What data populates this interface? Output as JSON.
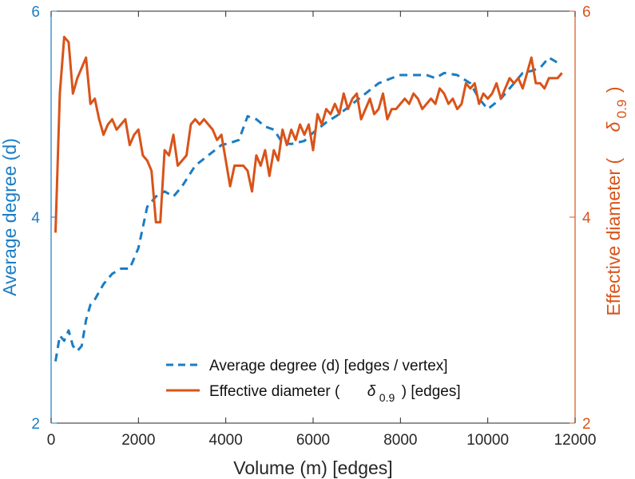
{
  "chart_data": {
    "type": "line",
    "xlabel": "Volume (m) [edges]",
    "xlim": [
      0,
      12000
    ],
    "x_ticks": [
      "0",
      "2000",
      "4000",
      "6000",
      "8000",
      "10000",
      "12000"
    ],
    "left_axis": {
      "label": "Average degree (d)",
      "ylim": [
        2,
        6
      ],
      "ticks": [
        "2",
        "4",
        "6"
      ],
      "color": "#1a7cc4"
    },
    "right_axis": {
      "label_prefix": "Effective diameter (",
      "label_symbol": "δ",
      "label_subscript": "0.9",
      "label_suffix": ")",
      "ylim": [
        2,
        6
      ],
      "ticks": [
        "2",
        "4",
        "6"
      ],
      "color": "#d95319"
    },
    "legend": {
      "position": "lower-right",
      "entries": [
        {
          "text": "Average degree (d) [edges / vertex]"
        },
        {
          "prefix": "Effective diameter (",
          "symbol": "δ",
          "subscript": "0.9",
          "suffix": ") [edges]"
        }
      ]
    },
    "series": [
      {
        "name": "Average degree (d) [edges / vertex]",
        "axis": "left",
        "style": "dashed",
        "color": "#1a7cc4",
        "x": [
          100,
          200,
          300,
          400,
          500,
          600,
          700,
          800,
          900,
          1000,
          1200,
          1400,
          1600,
          1800,
          2000,
          2200,
          2400,
          2600,
          2800,
          3000,
          3300,
          3600,
          3900,
          4100,
          4300,
          4500,
          4700,
          4900,
          5100,
          5300,
          5500,
          5800,
          6000,
          6300,
          6600,
          6900,
          7200,
          7500,
          7800,
          8000,
          8300,
          8600,
          8800,
          9000,
          9300,
          9600,
          9800,
          10000,
          10300,
          10600,
          10800,
          11000,
          11200,
          11400,
          11600
        ],
        "values": [
          2.6,
          2.85,
          2.8,
          2.9,
          2.75,
          2.7,
          2.75,
          3.0,
          3.15,
          3.2,
          3.35,
          3.45,
          3.5,
          3.5,
          3.7,
          4.1,
          4.2,
          4.25,
          4.2,
          4.3,
          4.5,
          4.6,
          4.7,
          4.72,
          4.75,
          4.98,
          4.95,
          4.88,
          4.85,
          4.72,
          4.71,
          4.74,
          4.82,
          4.92,
          5.0,
          5.1,
          5.2,
          5.3,
          5.35,
          5.38,
          5.38,
          5.38,
          5.35,
          5.4,
          5.38,
          5.3,
          5.15,
          5.05,
          5.15,
          5.3,
          5.4,
          5.42,
          5.45,
          5.55,
          5.5
        ]
      },
      {
        "name": "Effective diameter (δ0.9) [edges]",
        "axis": "right",
        "style": "solid",
        "color": "#d95319",
        "x": [
          100,
          200,
          300,
          400,
          500,
          600,
          700,
          800,
          900,
          1000,
          1100,
          1200,
          1300,
          1400,
          1500,
          1600,
          1700,
          1800,
          1900,
          2000,
          2100,
          2200,
          2300,
          2400,
          2500,
          2600,
          2700,
          2800,
          2900,
          3000,
          3100,
          3200,
          3300,
          3400,
          3500,
          3600,
          3700,
          3800,
          3900,
          4000,
          4100,
          4200,
          4300,
          4400,
          4500,
          4600,
          4700,
          4800,
          4900,
          5000,
          5100,
          5200,
          5300,
          5400,
          5500,
          5600,
          5700,
          5800,
          5900,
          6000,
          6100,
          6200,
          6300,
          6400,
          6500,
          6600,
          6700,
          6800,
          6900,
          7000,
          7100,
          7200,
          7300,
          7400,
          7500,
          7600,
          7700,
          7800,
          7900,
          8000,
          8100,
          8200,
          8300,
          8400,
          8500,
          8600,
          8700,
          8800,
          8900,
          9000,
          9100,
          9200,
          9300,
          9400,
          9500,
          9600,
          9700,
          9800,
          9900,
          10000,
          10100,
          10200,
          10300,
          10400,
          10500,
          10600,
          10700,
          10800,
          10900,
          11000,
          11100,
          11200,
          11300,
          11400,
          11500,
          11600,
          11700
        ],
        "values": [
          3.85,
          5.2,
          5.75,
          5.7,
          5.2,
          5.35,
          5.45,
          5.55,
          5.1,
          5.15,
          4.95,
          4.8,
          4.9,
          4.95,
          4.85,
          4.9,
          4.95,
          4.7,
          4.8,
          4.85,
          4.6,
          4.55,
          4.45,
          3.95,
          3.95,
          4.65,
          4.6,
          4.8,
          4.5,
          4.55,
          4.6,
          4.9,
          4.95,
          4.9,
          4.95,
          4.9,
          4.85,
          4.75,
          4.8,
          4.55,
          4.3,
          4.5,
          4.5,
          4.5,
          4.45,
          4.25,
          4.6,
          4.5,
          4.65,
          4.4,
          4.65,
          4.55,
          4.85,
          4.7,
          4.85,
          4.75,
          4.9,
          4.8,
          4.9,
          4.65,
          5.0,
          4.9,
          5.05,
          5.0,
          5.1,
          5.0,
          5.2,
          5.05,
          5.15,
          5.2,
          4.95,
          5.05,
          5.15,
          5.0,
          5.05,
          5.2,
          4.95,
          5.05,
          5.05,
          5.1,
          5.15,
          5.1,
          5.2,
          5.15,
          5.05,
          5.1,
          5.15,
          5.1,
          5.25,
          5.2,
          5.1,
          5.15,
          5.05,
          5.1,
          5.3,
          5.25,
          5.3,
          5.1,
          5.2,
          5.15,
          5.2,
          5.3,
          5.15,
          5.25,
          5.35,
          5.3,
          5.35,
          5.25,
          5.4,
          5.55,
          5.3,
          5.3,
          5.25,
          5.35,
          5.35,
          5.35,
          5.4
        ]
      }
    ]
  }
}
